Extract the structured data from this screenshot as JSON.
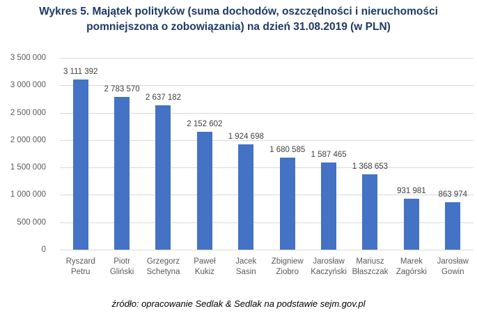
{
  "title": {
    "line1": "Wykres 5. Majątek polityków (suma dochodów, oszczędności i nieruchomości",
    "line2": "pomniejszona o zobowiązania) na dzień 31.08.2019 (w PLN)"
  },
  "footer": {
    "source": "źródło: opracowanie Sedlak & Sedlak na podstawie sejm.gov.pl"
  },
  "colors": {
    "bar": "#4472C4",
    "title_text": "#1F3864",
    "axis_text": "#595959",
    "value_label_text": "#404040",
    "gridline": "#D9D9D9"
  },
  "chart_data": {
    "type": "bar",
    "title": "Wykres 5. Majątek polityków (suma dochodów, oszczędności i nieruchomości pomniejszona o zobowiązania) na dzień 31.08.2019 (w PLN)",
    "categories": [
      "Ryszard Petru",
      "Piotr Gliński",
      "Grzegorz Schetyna",
      "Paweł Kukiz",
      "Jacek Sasin",
      "Zbigniew Ziobro",
      "Jarosław Kaczyński",
      "Mariusz Błaszczak",
      "Marek Zagórski",
      "Jarosław Gowin"
    ],
    "values": [
      3111392,
      2783570,
      2637182,
      2152602,
      1924698,
      1680585,
      1587465,
      1368653,
      931981,
      863974
    ],
    "value_labels": [
      "3 111 392",
      "2 783 570",
      "2 637 182",
      "2 152 602",
      "1 924 698",
      "1 680 585",
      "1 587 465",
      "1 368 653",
      "931 981",
      "863 974"
    ],
    "xlabel": "",
    "ylabel": "",
    "ylim": [
      0,
      3500000
    ],
    "ytick_step": 500000,
    "ytick_labels": [
      "0",
      "500 000",
      "1 000 000",
      "1 500 000",
      "2 000 000",
      "2 500 000",
      "3 000 000",
      "3 500 000"
    ],
    "grid": true,
    "legend": "none",
    "source_note": "źródło: opracowanie Sedlak & Sedlak na podstawie sejm.gov.pl"
  }
}
